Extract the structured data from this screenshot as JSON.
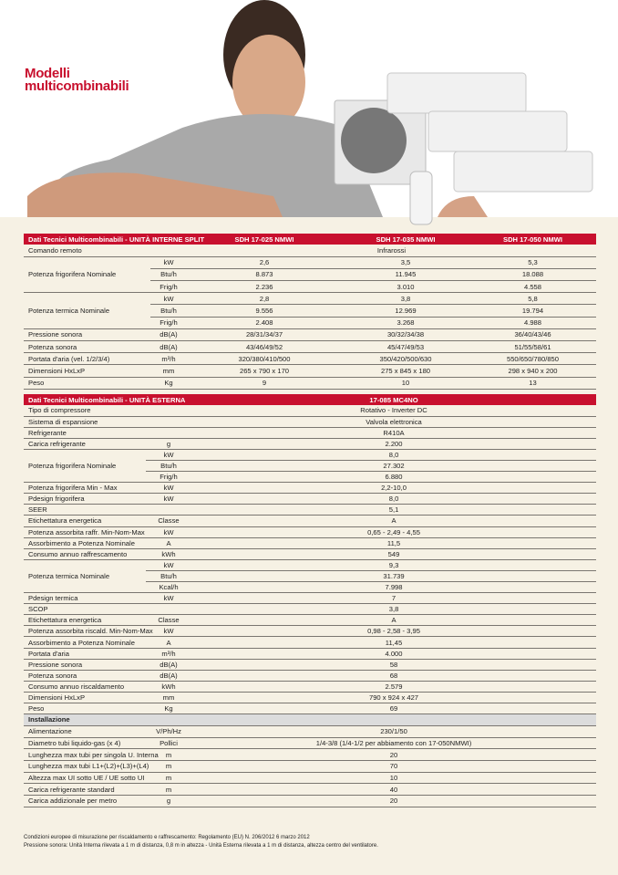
{
  "header": {
    "title_line1": "Modelli",
    "title_line2": "multicombinabili"
  },
  "colors": {
    "accent": "#c8102e",
    "background": "#f6f1e4",
    "section": "#dcdcdc"
  },
  "table1": {
    "title": "Dati Tecnici Multicombinabili - UNITÀ INTERNE SPLIT",
    "columns": [
      "SDH 17-025 NMWI",
      "SDH 17-035 NMWI",
      "SDH 17-050 NMWI"
    ],
    "rows": [
      {
        "label": "Comando remoto",
        "sub": [
          {
            "unit": "",
            "span": "Infrarossi"
          }
        ]
      },
      {
        "label": "Potenza frigorifera Nominale",
        "sub": [
          {
            "unit": "kW",
            "values": [
              "2,6",
              "3,5",
              "5,3"
            ]
          },
          {
            "unit": "Btu/h",
            "values": [
              "8.873",
              "11.945",
              "18.088"
            ]
          },
          {
            "unit": "Frig/h",
            "values": [
              "2.236",
              "3.010",
              "4.558"
            ]
          }
        ]
      },
      {
        "label": "Potenza termica Nominale",
        "sub": [
          {
            "unit": "kW",
            "values": [
              "2,8",
              "3,8",
              "5,8"
            ]
          },
          {
            "unit": "Btu/h",
            "values": [
              "9.556",
              "12.969",
              "19.794"
            ]
          },
          {
            "unit": "Frig/h",
            "values": [
              "2.408",
              "3.268",
              "4.988"
            ]
          }
        ]
      },
      {
        "label": "Pressione sonora",
        "sub": [
          {
            "unit": "dB(A)",
            "values": [
              "28/31/34/37",
              "30/32/34/38",
              "36/40/43/46"
            ]
          }
        ]
      },
      {
        "label": "Potenza sonora",
        "sub": [
          {
            "unit": "dB(A)",
            "values": [
              "43/46/49/52",
              "45/47/49/53",
              "51/55/58/61"
            ]
          }
        ]
      },
      {
        "label": "Portata d'aria (vel. 1/2/3/4)",
        "sub": [
          {
            "unit": "m³/h",
            "values": [
              "320/380/410/500",
              "350/420/500/630",
              "550/650/780/850"
            ]
          }
        ]
      },
      {
        "label": "Dimensioni HxLxP",
        "sub": [
          {
            "unit": "mm",
            "values": [
              "265 x 790 x 170",
              "275 x 845 x 180",
              "298 x 940 x 200"
            ]
          }
        ]
      },
      {
        "label": "Peso",
        "sub": [
          {
            "unit": "Kg",
            "values": [
              "9",
              "10",
              "13"
            ]
          }
        ]
      }
    ]
  },
  "table2": {
    "title": "Dati Tecnici Multicombinabili - UNITÀ ESTERNA",
    "column": "17-085 MC4NO",
    "rows": [
      {
        "label": "Tipo di compressore",
        "sub": [
          {
            "unit": "",
            "value": "Rotativo - Inverter DC"
          }
        ]
      },
      {
        "label": "Sistema di espansione",
        "sub": [
          {
            "unit": "",
            "value": "Valvola elettronica"
          }
        ]
      },
      {
        "label": "Refrigerante",
        "sub": [
          {
            "unit": "",
            "value": "R410A"
          }
        ]
      },
      {
        "label": "Carica refrigerante",
        "sub": [
          {
            "unit": "g",
            "value": "2.200"
          }
        ]
      },
      {
        "label": "Potenza frigorifera Nominale",
        "sub": [
          {
            "unit": "kW",
            "value": "8,0"
          },
          {
            "unit": "Btu/h",
            "value": "27.302"
          },
          {
            "unit": "Frig/h",
            "value": "6.880"
          }
        ]
      },
      {
        "label": "Potenza frigorifera Min - Max",
        "sub": [
          {
            "unit": "kW",
            "value": "2,2-10,0"
          }
        ]
      },
      {
        "label": "Pdesign frigorifera",
        "sub": [
          {
            "unit": "kW",
            "value": "8,0"
          }
        ]
      },
      {
        "label": "SEER",
        "sub": [
          {
            "unit": "",
            "value": "5,1"
          }
        ]
      },
      {
        "label": "Etichettatura energetica",
        "sub": [
          {
            "unit": "Classe",
            "value": "A"
          }
        ]
      },
      {
        "label": "Potenza assorbita raffr. Min-Nom-Max",
        "sub": [
          {
            "unit": "kW",
            "value": "0,65 - 2,49 - 4,55"
          }
        ]
      },
      {
        "label": "Assorbimento a Potenza Nominale",
        "sub": [
          {
            "unit": "A",
            "value": "11,5"
          }
        ]
      },
      {
        "label": "Consumo annuo raffrescamento",
        "sub": [
          {
            "unit": "kWh",
            "value": "549"
          }
        ]
      },
      {
        "label": "Potenza termica Nominale",
        "sub": [
          {
            "unit": "kW",
            "value": "9,3"
          },
          {
            "unit": "Btu/h",
            "value": "31.739"
          },
          {
            "unit": "Kcal/h",
            "value": "7.998"
          }
        ]
      },
      {
        "label": "Pdesign termica",
        "sub": [
          {
            "unit": "kW",
            "value": "7"
          }
        ]
      },
      {
        "label": "SCOP",
        "sub": [
          {
            "unit": "",
            "value": "3,8"
          }
        ]
      },
      {
        "label": "Etichettatura energetica",
        "sub": [
          {
            "unit": "Classe",
            "value": "A"
          }
        ]
      },
      {
        "label": "Potenza assorbita riscald.  Min-Nom-Max",
        "sub": [
          {
            "unit": "kW",
            "value": "0,98 - 2,58 - 3,95"
          }
        ]
      },
      {
        "label": "Assorbimento a Potenza Nominale",
        "sub": [
          {
            "unit": "A",
            "value": "11,45"
          }
        ]
      },
      {
        "label": "Portata d'aria",
        "sub": [
          {
            "unit": "m³/h",
            "value": "4.000"
          }
        ]
      },
      {
        "label": "Pressione sonora",
        "sub": [
          {
            "unit": "dB(A)",
            "value": "58"
          }
        ]
      },
      {
        "label": "Potenza sonora",
        "sub": [
          {
            "unit": "dB(A)",
            "value": "68"
          }
        ]
      },
      {
        "label": "Consumo annuo riscaldamento",
        "sub": [
          {
            "unit": "kWh",
            "value": "2.579"
          }
        ]
      },
      {
        "label": "Dimensioni HxLxP",
        "sub": [
          {
            "unit": "mm",
            "value": "790 x 924 x 427"
          }
        ]
      },
      {
        "label": "Peso",
        "sub": [
          {
            "unit": "Kg",
            "value": "69"
          }
        ]
      }
    ],
    "install_title": "Installazione",
    "install_rows": [
      {
        "label": "Alimentazione",
        "sub": [
          {
            "unit": "V/Ph/Hz",
            "value": "230/1/50"
          }
        ]
      },
      {
        "label": "Diametro tubi liquido-gas (x 4)",
        "sub": [
          {
            "unit": "Pollici",
            "value": "1/4-3/8  (1/4-1/2 per abbiamento con 17-050NMWI)"
          }
        ]
      },
      {
        "label": "Lunghezza max  tubi per singola U. Interna",
        "sub": [
          {
            "unit": "m",
            "value": "20"
          }
        ]
      },
      {
        "label": "Lunghezza max tubi L1+(L2)+(L3)+(L4)",
        "sub": [
          {
            "unit": "m",
            "value": "70"
          }
        ]
      },
      {
        "label": "Altezza max UI sotto UE / UE sotto UI",
        "sub": [
          {
            "unit": "m",
            "value": "10"
          }
        ]
      },
      {
        "label": "Carica refrigerante standard",
        "sub": [
          {
            "unit": "m",
            "value": "40"
          }
        ]
      },
      {
        "label": "Carica addizionale per metro",
        "sub": [
          {
            "unit": "g",
            "value": "20"
          }
        ]
      }
    ]
  },
  "notes": [
    "Condizioni europee di misurazione per riscaldamento e raffrescamento: Regolamento (EU) N. 206/2012  6 marzo 2012",
    "Pressione sonora: Unità Interna rilevata a 1 m di distanza, 0,8 m in altezza - Unità Esterna rilevata a 1 m di distanza, altezza centro del ventilatore."
  ]
}
